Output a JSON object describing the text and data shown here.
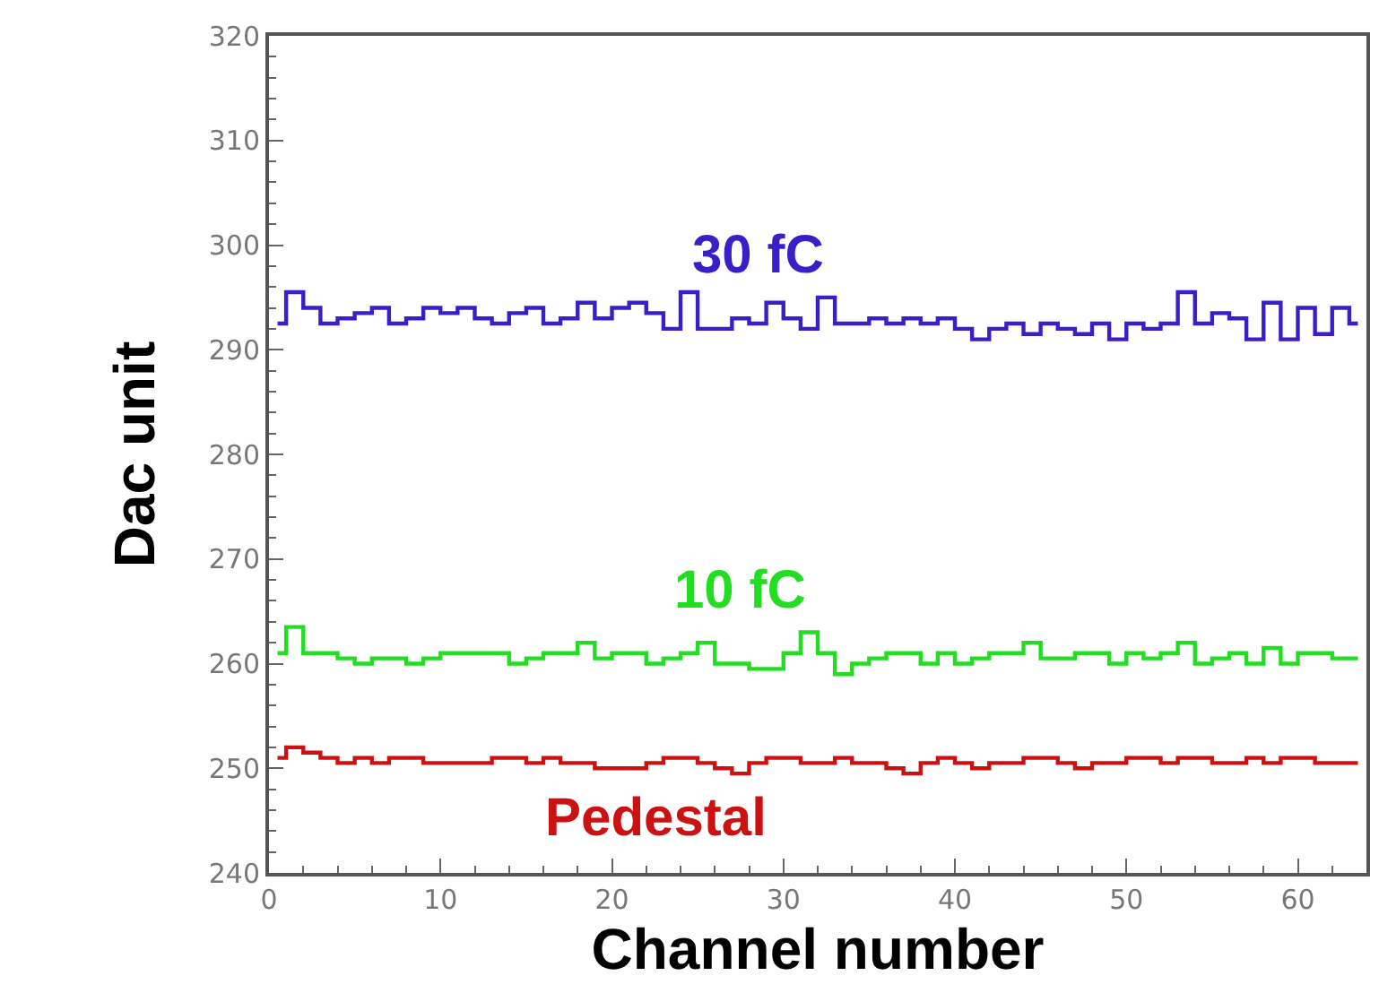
{
  "chart_data": {
    "type": "step",
    "xlabel": "Channel number",
    "ylabel": "Dac unit",
    "x": [
      0.5,
      1.5,
      2.5,
      3.5,
      4.5,
      5.5,
      6.5,
      7.5,
      8.5,
      9.5,
      10.5,
      11.5,
      12.5,
      13.5,
      14.5,
      15.5,
      16.5,
      17.5,
      18.5,
      19.5,
      20.5,
      21.5,
      22.5,
      23.5,
      24.5,
      25.5,
      26.5,
      27.5,
      28.5,
      29.5,
      30.5,
      31.5,
      32.5,
      33.5,
      34.5,
      35.5,
      36.5,
      37.5,
      38.5,
      39.5,
      40.5,
      41.5,
      42.5,
      43.5,
      44.5,
      45.5,
      46.5,
      47.5,
      48.5,
      49.5,
      50.5,
      51.5,
      52.5,
      53.5,
      54.5,
      55.5,
      56.5,
      57.5,
      58.5,
      59.5,
      60.5,
      61.5,
      62.5,
      63.5
    ],
    "series": [
      {
        "name": "30 fC",
        "color": "#3a1fc8",
        "values": [
          292.5,
          295.5,
          294,
          292.5,
          293,
          293.5,
          294,
          292.5,
          293,
          294,
          293.5,
          294,
          293,
          292.5,
          293.5,
          294,
          292.5,
          293,
          294.5,
          293,
          294,
          294.5,
          293.5,
          292,
          295.5,
          292,
          292,
          293,
          292.5,
          294.5,
          293,
          292,
          295,
          292.5,
          292.5,
          293,
          292.5,
          293,
          292.5,
          293,
          292,
          291,
          292,
          292.5,
          291.5,
          292.5,
          292,
          291.5,
          292.5,
          291,
          292.5,
          292,
          292.5,
          295.5,
          292.5,
          293.5,
          293,
          291,
          294.5,
          291,
          294,
          291.5,
          294,
          292.5
        ]
      },
      {
        "name": "10 fC",
        "color": "#22dd22",
        "values": [
          261,
          263.5,
          261,
          261,
          260.5,
          260,
          260.5,
          260.5,
          260,
          260.5,
          261,
          261,
          261,
          261,
          260,
          260.5,
          261,
          261,
          262,
          260.5,
          261,
          261,
          260,
          260.5,
          261,
          262,
          260,
          260,
          259.5,
          259.5,
          261,
          263,
          261,
          259,
          260,
          260.5,
          261,
          261,
          260,
          261,
          260,
          260.5,
          261,
          261,
          262,
          260.5,
          260.5,
          261,
          261,
          260,
          261,
          260.5,
          261,
          262,
          260,
          260.5,
          261,
          260,
          261.5,
          260,
          261,
          261,
          260.5,
          260.5
        ]
      },
      {
        "name": "Pedestal",
        "color": "#cc1111",
        "values": [
          251,
          252,
          251.5,
          251,
          250.5,
          251,
          250.5,
          251,
          251,
          250.5,
          250.5,
          250.5,
          250.5,
          251,
          251,
          250.5,
          251,
          250.5,
          250.5,
          250,
          250,
          250,
          250.5,
          251,
          251,
          250.5,
          250,
          249.5,
          250.5,
          251,
          251,
          250.5,
          250.5,
          251,
          250.5,
          250.5,
          250,
          249.5,
          250.5,
          251,
          250.5,
          250,
          250.5,
          250.5,
          251,
          251,
          250.5,
          250,
          250.5,
          250.5,
          251,
          251,
          250.5,
          251,
          251,
          250.5,
          250.5,
          251,
          250.5,
          251,
          251,
          250.5,
          250.5,
          250.5
        ]
      }
    ],
    "xlim": [
      0,
      64
    ],
    "xticks": [
      0,
      10,
      20,
      30,
      40,
      50,
      60
    ],
    "ylim": [
      240,
      320
    ],
    "yticks": [
      240,
      250,
      260,
      270,
      280,
      290,
      300,
      310,
      320
    ],
    "grid": false,
    "legend": false
  }
}
